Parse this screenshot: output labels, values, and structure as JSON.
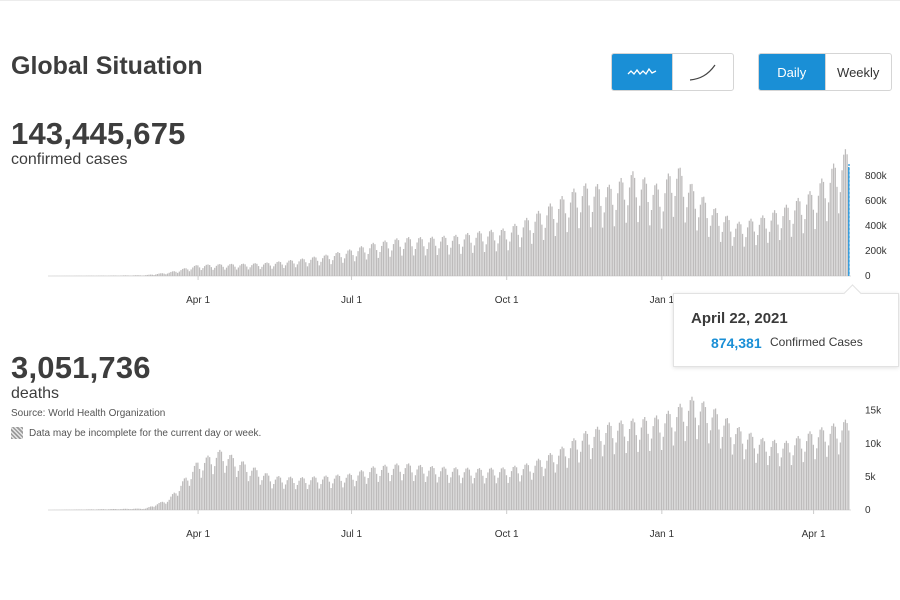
{
  "title": "Global Situation",
  "controls": {
    "chart_type": {
      "buttons": [
        {
          "name": "daily-trend",
          "icon": "sparkline-icon"
        },
        {
          "name": "cumulative",
          "icon": "curve-icon"
        }
      ],
      "active": 0
    },
    "interval": {
      "buttons": [
        "Daily",
        "Weekly"
      ],
      "active": 0
    }
  },
  "colors": {
    "accent": "#1a8fd6",
    "bar": "#bdbbbb",
    "axis": "#dddddd",
    "text": "#3d3d3d"
  },
  "confirmed": {
    "total": "143,445,675",
    "label": "confirmed cases"
  },
  "deaths": {
    "total": "3,051,736",
    "label": "deaths"
  },
  "source": "Source: World Health Organization",
  "incomplete_note": "Data may be incomplete for the current day or week.",
  "tooltip": {
    "date": "April 22, 2021",
    "value": "874,381",
    "label": "Confirmed Cases"
  },
  "chart_data": [
    {
      "type": "bar",
      "name": "confirmed-cases",
      "x_start": "2020-01-03",
      "x_end": "2021-04-22",
      "xticks": [
        "Apr 1",
        "Jul 1",
        "Oct 1",
        "Jan 1"
      ],
      "xtick_dates": [
        "2020-04-01",
        "2020-07-01",
        "2020-10-01",
        "2021-01-01"
      ],
      "yticks": [
        0,
        200000,
        400000,
        600000,
        800000
      ],
      "ytick_labels": [
        "0",
        "200k",
        "400k",
        "600k",
        "800k"
      ],
      "ylim": [
        0,
        850000
      ],
      "highlight_date": "2021-04-22",
      "weekly_points": [
        [
          "2020-01-03",
          0
        ],
        [
          "2020-02-05",
          2500
        ],
        [
          "2020-03-01",
          6000
        ],
        [
          "2020-03-15",
          25000
        ],
        [
          "2020-04-01",
          75000
        ],
        [
          "2020-04-15",
          80000
        ],
        [
          "2020-05-01",
          83000
        ],
        [
          "2020-05-15",
          92000
        ],
        [
          "2020-06-01",
          115000
        ],
        [
          "2020-06-15",
          140000
        ],
        [
          "2020-07-01",
          180000
        ],
        [
          "2020-07-15",
          225000
        ],
        [
          "2020-08-01",
          260000
        ],
        [
          "2020-08-15",
          260000
        ],
        [
          "2020-09-01",
          275000
        ],
        [
          "2020-09-15",
          300000
        ],
        [
          "2020-10-01",
          320000
        ],
        [
          "2020-10-15",
          400000
        ],
        [
          "2020-11-01",
          520000
        ],
        [
          "2020-11-15",
          620000
        ],
        [
          "2020-12-01",
          610000
        ],
        [
          "2020-12-15",
          700000
        ],
        [
          "2021-01-01",
          600000
        ],
        [
          "2021-01-09",
          770000
        ],
        [
          "2021-01-20",
          600000
        ],
        [
          "2021-02-01",
          460000
        ],
        [
          "2021-02-15",
          360000
        ],
        [
          "2021-03-01",
          400000
        ],
        [
          "2021-03-15",
          470000
        ],
        [
          "2021-04-01",
          580000
        ],
        [
          "2021-04-15",
          780000
        ],
        [
          "2021-04-22",
          874381
        ]
      ],
      "daily_swing": 0.2
    },
    {
      "type": "bar",
      "name": "deaths",
      "x_start": "2020-01-03",
      "x_end": "2021-04-22",
      "xticks": [
        "Apr 1",
        "Jul 1",
        "Oct 1",
        "Jan 1",
        "Apr 1"
      ],
      "xtick_dates": [
        "2020-04-01",
        "2020-07-01",
        "2020-10-01",
        "2021-01-01",
        "2021-04-01"
      ],
      "yticks": [
        0,
        5000,
        10000,
        15000
      ],
      "ytick_labels": [
        "0",
        "5k",
        "10k",
        "15k"
      ],
      "ylim": [
        0,
        16000
      ],
      "weekly_points": [
        [
          "2020-01-03",
          0
        ],
        [
          "2020-03-01",
          200
        ],
        [
          "2020-03-15",
          1500
        ],
        [
          "2020-04-01",
          6500
        ],
        [
          "2020-04-15",
          8000
        ],
        [
          "2020-05-01",
          6000
        ],
        [
          "2020-05-15",
          4500
        ],
        [
          "2020-06-01",
          4300
        ],
        [
          "2020-06-15",
          4500
        ],
        [
          "2020-07-01",
          4800
        ],
        [
          "2020-07-15",
          5800
        ],
        [
          "2020-08-01",
          6200
        ],
        [
          "2020-08-15",
          5800
        ],
        [
          "2020-09-01",
          5600
        ],
        [
          "2020-09-15",
          5500
        ],
        [
          "2020-10-01",
          5600
        ],
        [
          "2020-10-15",
          6200
        ],
        [
          "2020-11-01",
          8000
        ],
        [
          "2020-11-15",
          10200
        ],
        [
          "2020-12-01",
          11500
        ],
        [
          "2020-12-15",
          12000
        ],
        [
          "2021-01-01",
          12500
        ],
        [
          "2021-01-20",
          15000
        ],
        [
          "2021-02-01",
          13500
        ],
        [
          "2021-02-15",
          11000
        ],
        [
          "2021-03-01",
          9500
        ],
        [
          "2021-03-15",
          9000
        ],
        [
          "2021-04-01",
          10500
        ],
        [
          "2021-04-22",
          12000
        ]
      ],
      "daily_swing": 0.15
    }
  ]
}
